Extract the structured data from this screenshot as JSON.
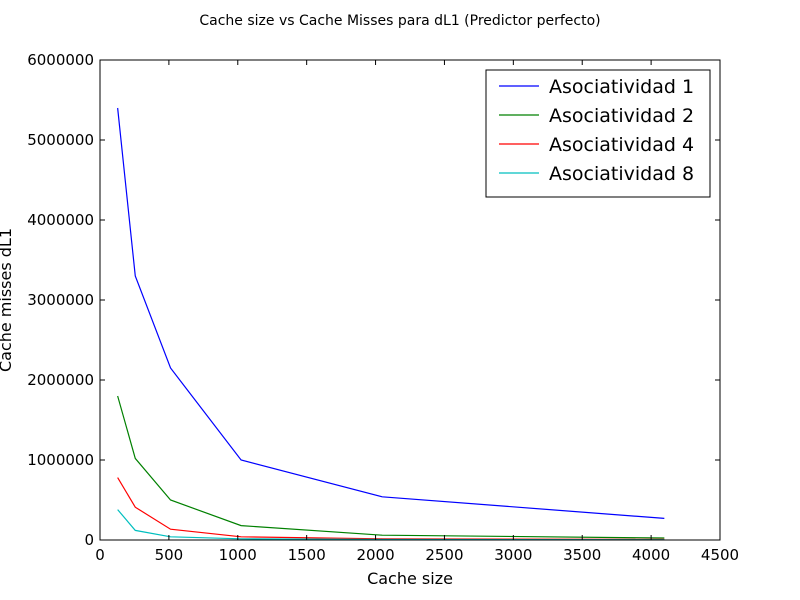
{
  "chart_data": {
    "type": "line",
    "title": "Cache size vs Cache Misses para dL1 (Predictor perfecto)",
    "xlabel": "Cache size",
    "ylabel": "Cache misses dL1",
    "xlim": [
      0,
      4500
    ],
    "ylim": [
      0,
      6000000
    ],
    "xticks": [
      0,
      500,
      1000,
      1500,
      2000,
      2500,
      3000,
      3500,
      4000,
      4500
    ],
    "yticks": [
      0,
      1000000,
      2000000,
      3000000,
      4000000,
      5000000,
      6000000
    ],
    "xtick_labels": [
      "0",
      "500",
      "1000",
      "1500",
      "2000",
      "2500",
      "3000",
      "3500",
      "4000",
      "4500"
    ],
    "ytick_labels": [
      "0",
      "1000000",
      "2000000",
      "3000000",
      "4000000",
      "5000000",
      "6000000"
    ],
    "grid": false,
    "legend_position": "top-right",
    "x": [
      128,
      256,
      512,
      1024,
      2048,
      4096
    ],
    "series": [
      {
        "name": "Asociatividad 1",
        "color": "#0000ff",
        "values": [
          5400000,
          3300000,
          2150000,
          1000000,
          540000,
          270000
        ]
      },
      {
        "name": "Asociatividad 2",
        "color": "#008000",
        "values": [
          1800000,
          1020000,
          500000,
          180000,
          60000,
          25000
        ]
      },
      {
        "name": "Asociatividad 4",
        "color": "#ff0000",
        "values": [
          780000,
          410000,
          135000,
          40000,
          15000,
          8000
        ]
      },
      {
        "name": "Asociatividad 8",
        "color": "#00bfbf",
        "values": [
          380000,
          120000,
          40000,
          15000,
          6000,
          3000
        ]
      }
    ]
  }
}
